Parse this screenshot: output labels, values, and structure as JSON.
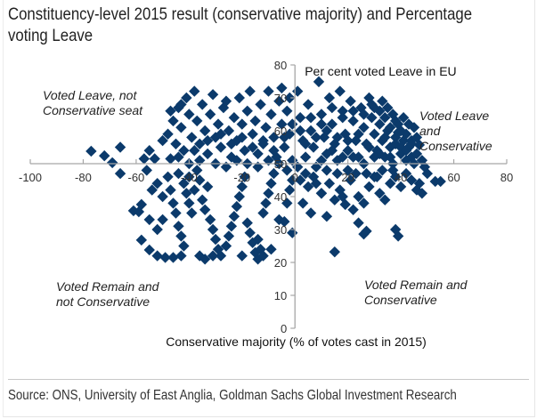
{
  "title_lines": [
    "Constituency-level 2015 result (conservative majority) and Percentage",
    "voting Leave"
  ],
  "source": "Source: ONS, University of East Anglia, Goldman Sachs Global Investment Research",
  "colors": {
    "marker": "#0b3a6b",
    "axis": "#a6a6a6",
    "text": "#222222"
  },
  "chart_data": {
    "type": "scatter",
    "title": "Constituency-level 2015 result (conservative majority) and Percentage voting Leave",
    "xlabel": "Conservative majority (% of votes cast in 2015)",
    "ylabel": "Per cent voted Leave in EU",
    "xlim": [
      -100,
      80
    ],
    "ylim": [
      0,
      80
    ],
    "x_axis_crosses_y_at": 50,
    "y_axis_crosses_x_at": 0,
    "x_ticks": [
      "-100",
      "-80",
      "-60",
      "-40",
      "-20",
      "0",
      "20",
      "40",
      "60",
      "80"
    ],
    "y_ticks": [
      "0",
      "10",
      "20",
      "30",
      "40",
      "50",
      "60",
      "70",
      "80"
    ],
    "grid": false,
    "legend": "none",
    "marker": "diamond",
    "annotations": [
      {
        "text_lines": [
          "Voted Leave, not",
          "Conservative seat"
        ],
        "quadrant": "top-left"
      },
      {
        "text_lines": [
          "Voted Leave",
          "and",
          "Conservative"
        ],
        "quadrant": "top-right"
      },
      {
        "text_lines": [
          "Voted Remain and",
          "not Conservative"
        ],
        "quadrant": "bottom-left"
      },
      {
        "text_lines": [
          "Voted Remain and",
          "Conservative"
        ],
        "quadrant": "bottom-right"
      }
    ],
    "points": [
      [
        -77,
        53.8
      ],
      [
        -72,
        52.4
      ],
      [
        -66,
        55
      ],
      [
        -69,
        50.3
      ],
      [
        -66,
        47
      ],
      [
        -57,
        51.5
      ],
      [
        -53,
        51.5
      ],
      [
        -56,
        48
      ],
      [
        -47,
        51.5
      ],
      [
        -61,
        35.7
      ],
      [
        -59,
        35.4
      ],
      [
        -58,
        37.6
      ],
      [
        -55,
        33
      ],
      [
        -58,
        26.8
      ],
      [
        -55,
        23.8
      ],
      [
        -52,
        22
      ],
      [
        -49,
        21.5
      ],
      [
        -46,
        21.5
      ],
      [
        -43,
        22
      ],
      [
        -54,
        42
      ],
      [
        -52,
        44
      ],
      [
        -50,
        40
      ],
      [
        -48,
        46
      ],
      [
        -47,
        42
      ],
      [
        -46,
        38
      ],
      [
        -45,
        35
      ],
      [
        -44,
        31
      ],
      [
        -43,
        28
      ],
      [
        -42,
        25
      ],
      [
        -50,
        33
      ],
      [
        -52,
        30
      ],
      [
        -44,
        47
      ],
      [
        -42,
        44
      ],
      [
        -41,
        41
      ],
      [
        -40,
        38
      ],
      [
        -39,
        35
      ],
      [
        -40,
        46
      ],
      [
        -38,
        42
      ],
      [
        -37,
        48
      ],
      [
        -36,
        45
      ],
      [
        -35,
        39
      ],
      [
        -34,
        36
      ],
      [
        -33,
        43
      ],
      [
        -32,
        33
      ],
      [
        -31,
        30
      ],
      [
        -30,
        27
      ],
      [
        -29,
        24
      ],
      [
        -28,
        22
      ],
      [
        -26,
        25
      ],
      [
        -25,
        28
      ],
      [
        -24,
        31
      ],
      [
        -23,
        34
      ],
      [
        -22,
        37
      ],
      [
        -21,
        40
      ],
      [
        -20,
        43
      ],
      [
        -19,
        46
      ],
      [
        -18,
        32
      ],
      [
        -17,
        29
      ],
      [
        -16,
        26
      ],
      [
        -15,
        23
      ],
      [
        -14,
        21
      ],
      [
        -13,
        24
      ],
      [
        -12,
        35
      ],
      [
        -11,
        38
      ],
      [
        -10,
        41
      ],
      [
        -9,
        44
      ],
      [
        -8,
        47
      ],
      [
        -36,
        22
      ],
      [
        -34,
        21
      ],
      [
        -31,
        22
      ],
      [
        -20,
        22
      ],
      [
        -12,
        22
      ],
      [
        -9,
        24
      ],
      [
        -14,
        27
      ],
      [
        -6,
        33
      ],
      [
        -4,
        32.4
      ],
      [
        -1,
        29
      ],
      [
        -3,
        38
      ],
      [
        -2,
        42
      ],
      [
        -1,
        45
      ],
      [
        -48,
        59
      ],
      [
        -46,
        63
      ],
      [
        -45,
        56
      ],
      [
        -44,
        67
      ],
      [
        -43,
        61
      ],
      [
        -42,
        54
      ],
      [
        -41,
        70
      ],
      [
        -40,
        65
      ],
      [
        -39,
        58
      ],
      [
        -38,
        72
      ],
      [
        -37,
        63
      ],
      [
        -36,
        56
      ],
      [
        -35,
        68
      ],
      [
        -34,
        60
      ],
      [
        -33,
        53
      ],
      [
        -32,
        65
      ],
      [
        -31,
        71
      ],
      [
        -30,
        58
      ],
      [
        -29,
        62
      ],
      [
        -28,
        55
      ],
      [
        -27,
        67
      ],
      [
        -26,
        69
      ],
      [
        -25,
        60
      ],
      [
        -24,
        52
      ],
      [
        -23,
        64
      ],
      [
        -22,
        57
      ],
      [
        -21,
        70
      ],
      [
        -20,
        62
      ],
      [
        -19,
        54
      ],
      [
        -18,
        66
      ],
      [
        -17,
        72
      ],
      [
        -16,
        59
      ],
      [
        -15,
        63
      ],
      [
        -14,
        53
      ],
      [
        -13,
        68
      ],
      [
        -12,
        56
      ],
      [
        -11,
        61
      ],
      [
        -10,
        72
      ],
      [
        -9,
        65
      ],
      [
        -8,
        58
      ],
      [
        -7,
        52
      ],
      [
        -6,
        69
      ],
      [
        -5,
        73
      ],
      [
        -5,
        62
      ],
      [
        -4,
        55
      ],
      [
        -3,
        66
      ],
      [
        -2,
        59
      ],
      [
        -1,
        51
      ],
      [
        -2,
        70
      ],
      [
        -40,
        50
      ],
      [
        -36,
        51
      ],
      [
        -30,
        50
      ],
      [
        -26,
        49
      ],
      [
        -22,
        51
      ],
      [
        -18,
        50
      ],
      [
        -14,
        49
      ],
      [
        -10,
        51
      ],
      [
        -6,
        50
      ],
      [
        -3,
        48
      ],
      [
        -55,
        54
      ],
      [
        -50,
        57
      ],
      [
        -44,
        52
      ],
      [
        -38,
        54
      ],
      [
        -33,
        57
      ],
      [
        -28,
        59
      ],
      [
        -24,
        56
      ],
      [
        -20,
        58
      ],
      [
        -16,
        55
      ],
      [
        -12,
        57
      ],
      [
        -8,
        54
      ],
      [
        -4,
        58
      ],
      [
        -1,
        62
      ],
      [
        -47,
        66
      ],
      [
        -43,
        68
      ],
      [
        1,
        72
      ],
      [
        2,
        64
      ],
      [
        3,
        57
      ],
      [
        4,
        52
      ],
      [
        5,
        68
      ],
      [
        6,
        60
      ],
      [
        7,
        55
      ],
      [
        8,
        49
      ],
      [
        9,
        74.9
      ],
      [
        10,
        65
      ],
      [
        11,
        58
      ],
      [
        12,
        53
      ],
      [
        13,
        70
      ],
      [
        14,
        62
      ],
      [
        15,
        56
      ],
      [
        16,
        51
      ],
      [
        17,
        72
      ],
      [
        18,
        66
      ],
      [
        19,
        59
      ],
      [
        20,
        54
      ],
      [
        21,
        69
      ],
      [
        22,
        63
      ],
      [
        23,
        57
      ],
      [
        24,
        52
      ],
      [
        25,
        67
      ],
      [
        26,
        61
      ],
      [
        27,
        56
      ],
      [
        28,
        70
      ],
      [
        29,
        64
      ],
      [
        30,
        59
      ],
      [
        31,
        54
      ],
      [
        32,
        62
      ],
      [
        33,
        57
      ],
      [
        34,
        52
      ],
      [
        35,
        60
      ],
      [
        36,
        55
      ],
      [
        37,
        50
      ],
      [
        38,
        58
      ],
      [
        39,
        59.5
      ],
      [
        40,
        53
      ],
      [
        41,
        57
      ],
      [
        42,
        51
      ],
      [
        43,
        55
      ],
      [
        44,
        52
      ],
      [
        45,
        50
      ],
      [
        46,
        53
      ],
      [
        47,
        55.7
      ],
      [
        48,
        51
      ],
      [
        49,
        49
      ],
      [
        32,
        66
      ],
      [
        29,
        68
      ],
      [
        34,
        64
      ],
      [
        36,
        61
      ],
      [
        38,
        63
      ],
      [
        40,
        60
      ],
      [
        42,
        59
      ],
      [
        44,
        57
      ],
      [
        45,
        61
      ],
      [
        43,
        62
      ],
      [
        41,
        64
      ],
      [
        39,
        62
      ],
      [
        37,
        65
      ],
      [
        35,
        67
      ],
      [
        33,
        69
      ],
      [
        30,
        67
      ],
      [
        26,
        65
      ],
      [
        22,
        66
      ],
      [
        18,
        64
      ],
      [
        14,
        67
      ],
      [
        10,
        62
      ],
      [
        6,
        64
      ],
      [
        2,
        60
      ],
      [
        4,
        56
      ],
      [
        8,
        58
      ],
      [
        12,
        60
      ],
      [
        16,
        58
      ],
      [
        20,
        57
      ],
      [
        24,
        59
      ],
      [
        28,
        55
      ],
      [
        32,
        53
      ],
      [
        36,
        52
      ],
      [
        40,
        55
      ],
      [
        44,
        56
      ],
      [
        46,
        58
      ],
      [
        34,
        58
      ],
      [
        38,
        56
      ],
      [
        42,
        54
      ],
      [
        30,
        52
      ],
      [
        26,
        50
      ],
      [
        22,
        52
      ],
      [
        18,
        52
      ],
      [
        14,
        54
      ],
      [
        10,
        51
      ],
      [
        2,
        45
      ],
      [
        5,
        43
      ],
      [
        7,
        46
      ],
      [
        10,
        41
      ],
      [
        13,
        44
      ],
      [
        15,
        39
      ],
      [
        17,
        42
      ],
      [
        19,
        37.6
      ],
      [
        21,
        45
      ],
      [
        24,
        40
      ],
      [
        26,
        38
      ],
      [
        28,
        43
      ],
      [
        30,
        46
      ],
      [
        32,
        41
      ],
      [
        34,
        39
      ],
      [
        36,
        44
      ],
      [
        38,
        46
      ],
      [
        40,
        43
      ],
      [
        42,
        47
      ],
      [
        44,
        45
      ],
      [
        47,
        44
      ],
      [
        50,
        47
      ],
      [
        53,
        44.6
      ],
      [
        55,
        44.6
      ],
      [
        48,
        41
      ],
      [
        31,
        46
      ],
      [
        27,
        47
      ],
      [
        23,
        47
      ],
      [
        20,
        48
      ],
      [
        16,
        47
      ],
      [
        12,
        48
      ],
      [
        8,
        44
      ],
      [
        4,
        47
      ],
      [
        1,
        49
      ],
      [
        46,
        42
      ],
      [
        37,
        48
      ],
      [
        33,
        48
      ],
      [
        15,
        23.2
      ],
      [
        26,
        28.6
      ],
      [
        27,
        29.5
      ],
      [
        39,
        28
      ],
      [
        38,
        30
      ],
      [
        10,
        41
      ],
      [
        6,
        35
      ],
      [
        12,
        34
      ],
      [
        3,
        38
      ],
      [
        18,
        40
      ],
      [
        24,
        32
      ],
      [
        22,
        36
      ]
    ]
  }
}
